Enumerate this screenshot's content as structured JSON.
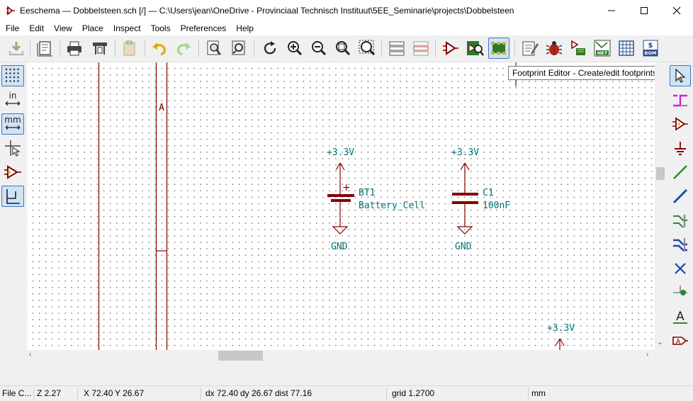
{
  "window": {
    "title": "Eeschema — Dobbelsteen.sch [/] — C:\\Users\\jean\\OneDrive - Provinciaal Technisch Instituut\\5EE_Seminarie\\projects\\Dobbelsteen"
  },
  "menu": {
    "items": [
      "File",
      "Edit",
      "View",
      "Place",
      "Inspect",
      "Tools",
      "Preferences",
      "Help"
    ]
  },
  "toolbar": {
    "icons": [
      "save-icon",
      "page-settings-icon",
      "print-icon",
      "plot-icon",
      "paste-icon",
      "undo-icon",
      "redo-icon",
      "find-icon",
      "find-replace-icon",
      "refresh-icon",
      "zoom-in-icon",
      "zoom-out-icon",
      "zoom-fit-icon",
      "zoom-selection-icon",
      "hierarchy-navigator-icon",
      "leave-sheet-icon",
      "symbol-editor-icon",
      "symbol-browser-icon",
      "footprint-editor-icon",
      "annotate-icon",
      "erc-icon",
      "assign-footprints-icon",
      "netlist-icon",
      "bus-definitions-icon",
      "bom-icon"
    ],
    "netlist_badge": "NET",
    "bom_badge": "BOM",
    "bom_dollar": "$"
  },
  "tooltip": {
    "text": "Footprint Editor - Create/edit footprints"
  },
  "left_toolbar": {
    "inch_label": "in",
    "mm_label": "mm"
  },
  "right_toolbar": {
    "text_label": "A"
  },
  "schematic": {
    "sheet_zone_label": "A",
    "bt1": {
      "ref": "BT1",
      "value": "Battery_Cell",
      "power": "+3.3V",
      "ground": "GND",
      "plus": "+"
    },
    "c1": {
      "ref": "C1",
      "value": "100nF",
      "power": "+3.3V",
      "ground": "GND"
    },
    "power3": "+3.3V",
    "colors": {
      "component": "#840000",
      "power_text": "#007575",
      "power_symbol": "#840000",
      "sheet_border": "#840000"
    }
  },
  "status": {
    "file": "File C...",
    "zoom": "Z 2.27",
    "x": "X 72.40",
    "y": "Y 26.67",
    "dx": "dx 72.40",
    "dy": "dy 26.67",
    "dist": "dist 77.16",
    "grid": "grid 1.2700",
    "units": "mm"
  }
}
